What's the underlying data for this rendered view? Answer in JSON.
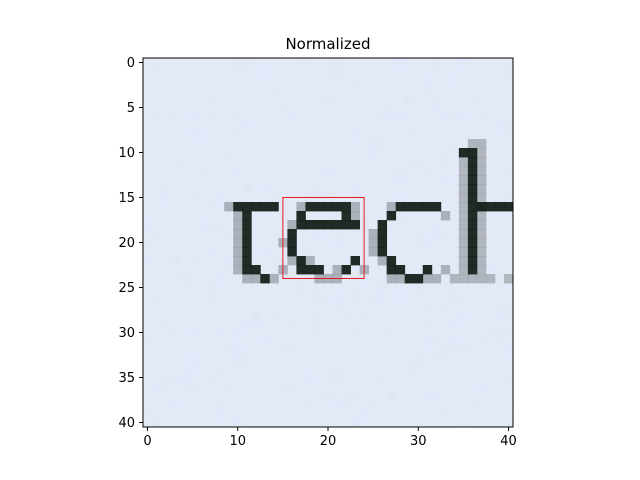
{
  "chart_data": {
    "type": "heatmap",
    "title": "Normalized",
    "xlabel": "",
    "ylabel": "",
    "xlim": [
      -0.5,
      40.5
    ],
    "ylim": [
      40.5,
      -0.5
    ],
    "x_ticks": [
      0,
      10,
      20,
      30,
      40
    ],
    "y_ticks": [
      0,
      5,
      10,
      15,
      20,
      25,
      30,
      35,
      40
    ],
    "grid": false,
    "image_text": "tech",
    "highlight_box": {
      "x": [
        15,
        24
      ],
      "y": [
        15,
        24
      ],
      "color": "#e8191c"
    },
    "colors": {
      "ink": "#0f1a14",
      "paper": "#e3e9f7",
      "shade": "#7e8488"
    }
  }
}
